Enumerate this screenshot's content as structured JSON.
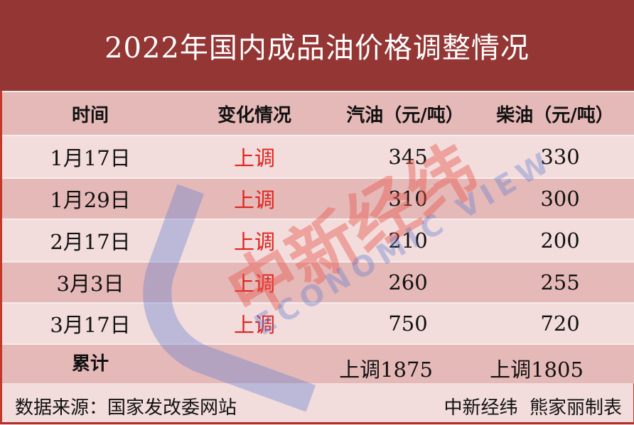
{
  "title": "2022年国内成品油价格调整情况",
  "table": {
    "headers": [
      "时间",
      "变化情况",
      "汽油（元/吨）",
      "柴油（元/吨）"
    ],
    "rows": [
      {
        "date": "1月17日",
        "change": "上调",
        "gasoline": "345",
        "diesel": "330"
      },
      {
        "date": "1月29日",
        "change": "上调",
        "gasoline": "310",
        "diesel": "300"
      },
      {
        "date": "2月17日",
        "change": "上调",
        "gasoline": "210",
        "diesel": "200"
      },
      {
        "date": "3月3日",
        "change": "上调",
        "gasoline": "260",
        "diesel": "255"
      },
      {
        "date": "3月17日",
        "change": "上调",
        "gasoline": "750",
        "diesel": "720"
      }
    ],
    "total": {
      "label": "累计",
      "gasoline": "上调1875",
      "diesel": "上调1805"
    }
  },
  "footer": {
    "source": "数据来源：国家发改委网站",
    "credit": "中新经纬  熊家丽制表"
  },
  "watermark": {
    "cn": "中新经纬",
    "en": "ECONOMIC VIEW"
  },
  "colors": {
    "title_bg": "#943634",
    "row_dark": "#e5b9b8",
    "row_light": "#f2dcdc",
    "up": "#e0221c"
  }
}
